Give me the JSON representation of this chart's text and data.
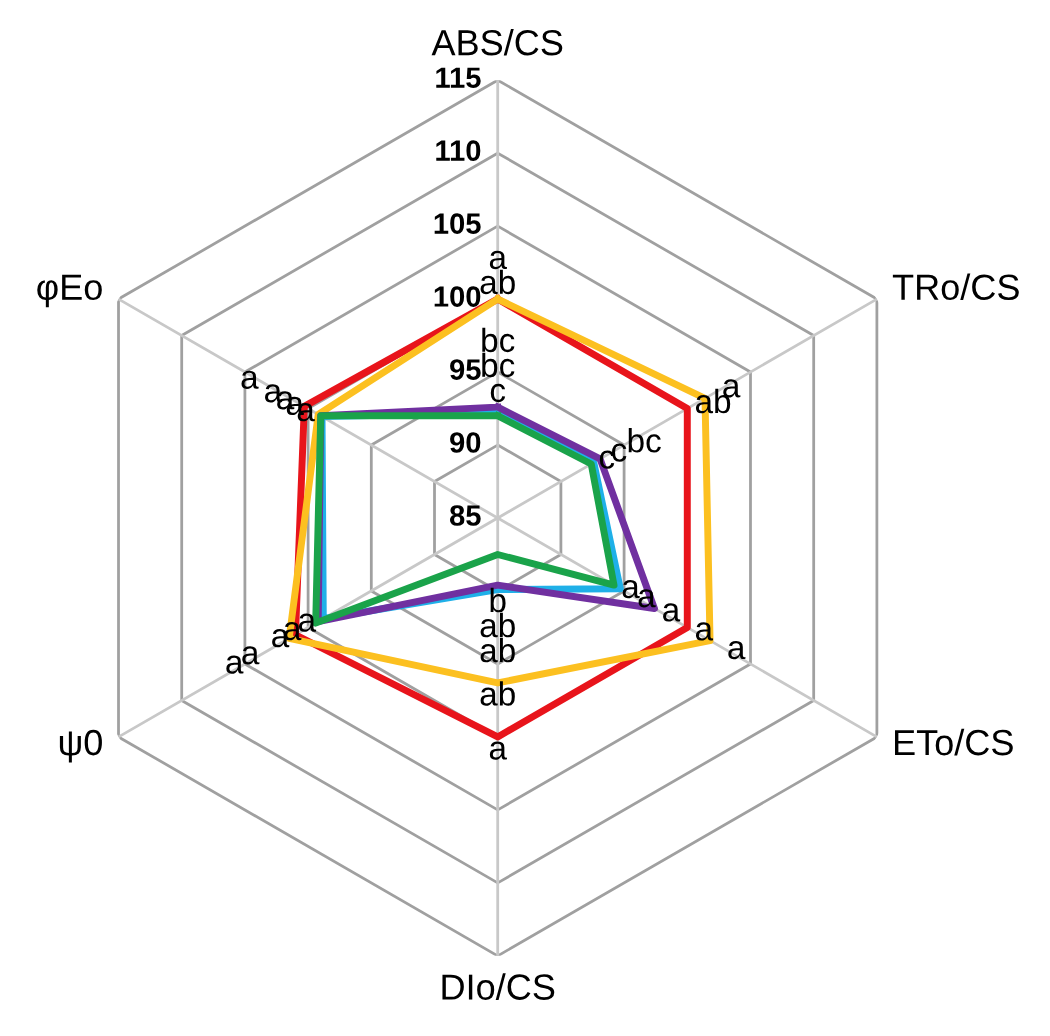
{
  "chart_data": {
    "type": "radar",
    "categories": [
      "ABS/CS",
      "TRo/CS",
      "ETo/CS",
      "DIo/CS",
      "ψ0",
      "φEo"
    ],
    "ylim": [
      85,
      115
    ],
    "yticks": [
      85,
      90,
      95,
      100,
      105,
      110,
      115
    ],
    "grid": true,
    "series": [
      {
        "color": "#e8141b",
        "values": [
          100,
          100,
          100,
          100,
          101,
          100.3
        ],
        "value_labels": [
          "ab",
          "ab",
          "a",
          "a",
          "a",
          "a"
        ]
      },
      {
        "color": "#fcc020",
        "values": [
          100,
          101.4,
          101.8,
          96.3,
          101.5,
          99.2
        ],
        "value_labels": [
          "a",
          "a",
          "a",
          "ab",
          "a",
          "a"
        ]
      },
      {
        "color": "#1fb0e8",
        "values": [
          92.2,
          92.6,
          94.7,
          89.9,
          98.8,
          98.9
        ],
        "value_labels": [
          "bc",
          "c",
          "a",
          "ab",
          "a",
          "a"
        ]
      },
      {
        "color": "#7030a0",
        "values": [
          92.6,
          93.1,
          97.4,
          89.6,
          99.2,
          99.0
        ],
        "value_labels": [
          "bc",
          "bc",
          "a",
          "ab",
          "a",
          "a"
        ]
      },
      {
        "color": "#1aa34a",
        "values": [
          92.0,
          92.4,
          94.2,
          87.5,
          99.4,
          99.0
        ],
        "value_labels": [
          "c",
          "c",
          "a",
          "b",
          "a",
          "a"
        ]
      }
    ]
  }
}
